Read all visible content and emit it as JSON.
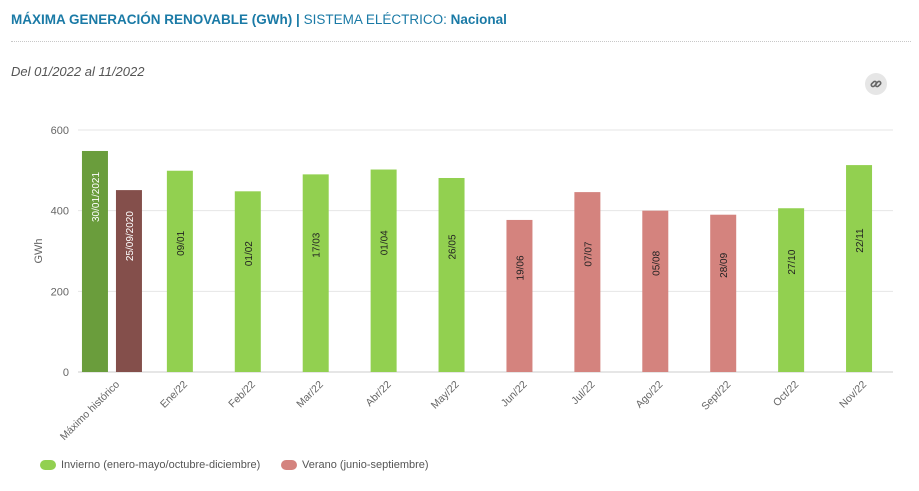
{
  "header": {
    "title": "MÁXIMA GENERACIÓN RENOVABLE (GWh)",
    "separator": "|",
    "system_label": "SISTEMA ELÉCTRICO:",
    "system_value": "Nacional"
  },
  "period_text": "Del 01/2022 al 11/2022",
  "link_icon": "link-icon",
  "colors": {
    "winter": "#92d050",
    "summer": "#d4837e",
    "historic_winter": "#6a9d3c",
    "historic_summer": "#844f4b",
    "grid": "#e6e6e6",
    "axis_text": "#666666"
  },
  "chart_data": {
    "type": "bar",
    "ylabel": "GWh",
    "ylim": [
      0,
      600
    ],
    "yticks": [
      0,
      200,
      400,
      600
    ],
    "categories": [
      "Máximo histórico",
      "Ene/22",
      "Feb/22",
      "Mar/22",
      "Abr/22",
      "May/22",
      "Jun/22",
      "Jul/22",
      "Ago/22",
      "Sept/22",
      "Oct/22",
      "Nov/22"
    ],
    "historic": [
      {
        "value": 548,
        "date_label": "30/01/2021",
        "season": "winter"
      },
      {
        "value": 451,
        "date_label": "25/09/2020",
        "season": "summer"
      }
    ],
    "monthly": [
      {
        "value": 499,
        "date_label": "09/01",
        "season": "winter"
      },
      {
        "value": 448,
        "date_label": "01/02",
        "season": "winter"
      },
      {
        "value": 490,
        "date_label": "17/03",
        "season": "winter"
      },
      {
        "value": 502,
        "date_label": "01/04",
        "season": "winter"
      },
      {
        "value": 481,
        "date_label": "26/05",
        "season": "winter"
      },
      {
        "value": 377,
        "date_label": "19/06",
        "season": "summer"
      },
      {
        "value": 446,
        "date_label": "07/07",
        "season": "summer"
      },
      {
        "value": 400,
        "date_label": "05/08",
        "season": "summer"
      },
      {
        "value": 390,
        "date_label": "28/09",
        "season": "summer"
      },
      {
        "value": 406,
        "date_label": "27/10",
        "season": "winter"
      },
      {
        "value": 513,
        "date_label": "22/11",
        "season": "winter"
      }
    ],
    "legend": [
      {
        "label": "Invierno (enero-mayo/octubre-diciembre)",
        "season": "winter"
      },
      {
        "label": "Verano (junio-septiembre)",
        "season": "summer"
      }
    ]
  }
}
